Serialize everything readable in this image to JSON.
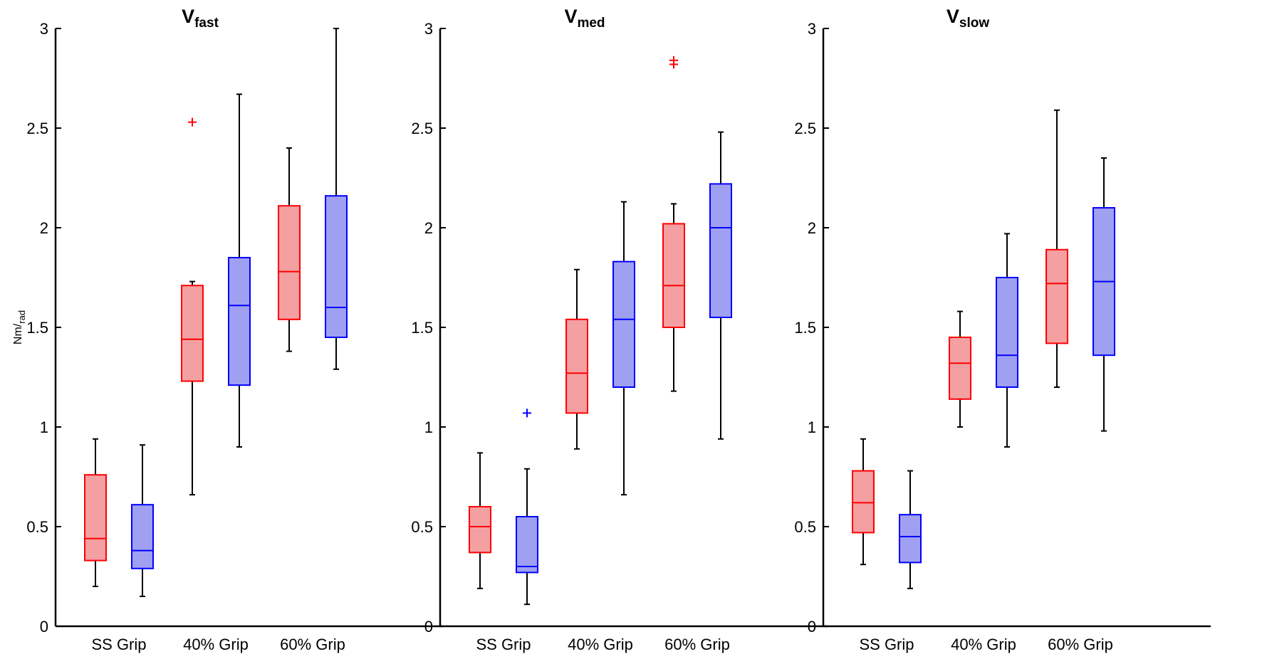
{
  "chart_data": {
    "type": "boxplot",
    "ylabel": {
      "main": "Nm",
      "sep": "/",
      "sub": "rad"
    },
    "ylim": [
      0,
      3
    ],
    "yticks": [
      0,
      0.5,
      1,
      1.5,
      2,
      2.5,
      3
    ],
    "ytick_labels": [
      "0",
      "0.5",
      "1",
      "1.5",
      "2",
      "2.5",
      "3"
    ],
    "categories": [
      "SS Grip",
      "40% Grip",
      "60% Grip"
    ],
    "colors": {
      "red_edge": "#ff0000",
      "red_fill": "#f4a0a3",
      "blue_edge": "#0000ff",
      "blue_fill": "#a0a0f2",
      "whisker": "#000000"
    },
    "panels": [
      {
        "title": "V",
        "subscript": "fast",
        "boxes": [
          {
            "category": "SS Grip",
            "series": "red",
            "whisker_low": 0.2,
            "q1": 0.33,
            "median": 0.44,
            "q3": 0.76,
            "whisker_high": 0.94,
            "outliers": []
          },
          {
            "category": "SS Grip",
            "series": "blue",
            "whisker_low": 0.15,
            "q1": 0.29,
            "median": 0.38,
            "q3": 0.61,
            "whisker_high": 0.91,
            "outliers": []
          },
          {
            "category": "40% Grip",
            "series": "red",
            "whisker_low": 0.66,
            "q1": 1.23,
            "median": 1.44,
            "q3": 1.71,
            "whisker_high": 1.73,
            "outliers": [
              2.53
            ]
          },
          {
            "category": "40% Grip",
            "series": "blue",
            "whisker_low": 0.9,
            "q1": 1.21,
            "median": 1.61,
            "q3": 1.85,
            "whisker_high": 2.67,
            "outliers": []
          },
          {
            "category": "60% Grip",
            "series": "red",
            "whisker_low": 1.38,
            "q1": 1.54,
            "median": 1.78,
            "q3": 2.11,
            "whisker_high": 2.4,
            "outliers": []
          },
          {
            "category": "60% Grip",
            "series": "blue",
            "whisker_low": 1.29,
            "q1": 1.45,
            "median": 1.6,
            "q3": 2.16,
            "whisker_high": 3.0,
            "outliers": []
          }
        ]
      },
      {
        "title": "V",
        "subscript": "med",
        "boxes": [
          {
            "category": "SS Grip",
            "series": "red",
            "whisker_low": 0.19,
            "q1": 0.37,
            "median": 0.5,
            "q3": 0.6,
            "whisker_high": 0.87,
            "outliers": []
          },
          {
            "category": "SS Grip",
            "series": "blue",
            "whisker_low": 0.11,
            "q1": 0.27,
            "median": 0.3,
            "q3": 0.55,
            "whisker_high": 0.79,
            "outliers": [
              1.07
            ]
          },
          {
            "category": "40% Grip",
            "series": "red",
            "whisker_low": 0.89,
            "q1": 1.07,
            "median": 1.27,
            "q3": 1.54,
            "whisker_high": 1.79,
            "outliers": []
          },
          {
            "category": "40% Grip",
            "series": "blue",
            "whisker_low": 0.66,
            "q1": 1.2,
            "median": 1.54,
            "q3": 1.83,
            "whisker_high": 2.13,
            "outliers": []
          },
          {
            "category": "60% Grip",
            "series": "red",
            "whisker_low": 1.18,
            "q1": 1.5,
            "median": 1.71,
            "q3": 2.02,
            "whisker_high": 2.12,
            "outliers": [
              2.82,
              2.84
            ]
          },
          {
            "category": "60% Grip",
            "series": "blue",
            "whisker_low": 0.94,
            "q1": 1.55,
            "median": 2.0,
            "q3": 2.22,
            "whisker_high": 2.48,
            "outliers": []
          }
        ]
      },
      {
        "title": "V",
        "subscript": "slow",
        "boxes": [
          {
            "category": "SS Grip",
            "series": "red",
            "whisker_low": 0.31,
            "q1": 0.47,
            "median": 0.62,
            "q3": 0.78,
            "whisker_high": 0.94,
            "outliers": []
          },
          {
            "category": "SS Grip",
            "series": "blue",
            "whisker_low": 0.19,
            "q1": 0.32,
            "median": 0.45,
            "q3": 0.56,
            "whisker_high": 0.78,
            "outliers": []
          },
          {
            "category": "40% Grip",
            "series": "red",
            "whisker_low": 1.0,
            "q1": 1.14,
            "median": 1.32,
            "q3": 1.45,
            "whisker_high": 1.58,
            "outliers": []
          },
          {
            "category": "40% Grip",
            "series": "blue",
            "whisker_low": 0.9,
            "q1": 1.2,
            "median": 1.36,
            "q3": 1.75,
            "whisker_high": 1.97,
            "outliers": []
          },
          {
            "category": "60% Grip",
            "series": "red",
            "whisker_low": 1.2,
            "q1": 1.42,
            "median": 1.72,
            "q3": 1.89,
            "whisker_high": 2.59,
            "outliers": []
          },
          {
            "category": "60% Grip",
            "series": "blue",
            "whisker_low": 0.98,
            "q1": 1.36,
            "median": 1.73,
            "q3": 2.1,
            "whisker_high": 2.35,
            "outliers": []
          }
        ]
      }
    ]
  }
}
